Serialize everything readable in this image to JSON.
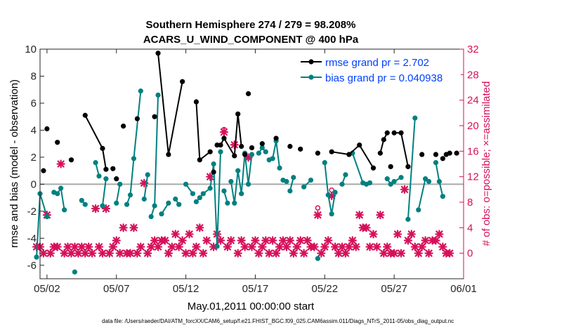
{
  "chart_data": {
    "type": "line",
    "title_line1": "Southern Hemisphere 274 / 279 = 98.208%",
    "title_line2": "ACARS_U_WIND_COMPONENT @ 400 hPa",
    "xlabel": "May.01,2011 00:00:00 start",
    "ylabel_left": "rmse and bias (model - observation)",
    "ylabel_right": "# of obs: o=possible; ×=assimilated",
    "footnote": "data file: /Users/raeder/DAI/ATM_forcXX/CAM6_setup/f.e21.FHIST_BGC.f09_025.CAM6assim.011/Diags_NTrS_2011-05/obs_diag_output.nc",
    "xlim": [
      0.5,
      31.0
    ],
    "ylim_left": [
      -7,
      10
    ],
    "ylim_right": [
      -4,
      32
    ],
    "x_ticks": [
      1,
      6,
      11,
      16,
      21,
      26,
      31
    ],
    "x_tick_labels": [
      "05/02",
      "05/07",
      "05/12",
      "05/17",
      "05/22",
      "05/27",
      "06/01"
    ],
    "y_ticks_left": [
      -6,
      -4,
      -2,
      0,
      2,
      4,
      6,
      8,
      10
    ],
    "y_tick_labels_left": [
      "-6",
      "-4",
      "-2",
      "0",
      "2",
      "4",
      "6",
      "8",
      "10"
    ],
    "y_ticks_right": [
      0,
      4,
      8,
      12,
      16,
      20,
      24,
      28,
      32
    ],
    "y_tick_labels_right": [
      "0",
      "4",
      "8",
      "12",
      "16",
      "20",
      "24",
      "28",
      "32"
    ],
    "zero_line": 0,
    "colors": {
      "rmse": "#000000",
      "bias": "#008080",
      "obs": "#d6105a",
      "legend_text": "#0040ff",
      "zero_line": "#a9a9a9",
      "right_axis": "#d6105a"
    },
    "series": [
      {
        "name": "rmse grand pr = 2.702",
        "key": "rmse",
        "points": [
          [
            0.75,
            1.0
          ],
          [
            1.0,
            4.1
          ],
          [
            1.75,
            3.1
          ],
          [
            2.75,
            1.8
          ],
          [
            3.75,
            5.1
          ],
          [
            5.0,
            2.65
          ],
          [
            5.25,
            1.1
          ],
          [
            5.75,
            1.15
          ],
          [
            6.0,
            0.4
          ],
          [
            6.5,
            4.3
          ],
          [
            7.5,
            4.85
          ],
          [
            8.75,
            5.0
          ],
          [
            9.0,
            9.7
          ],
          [
            9.75,
            2.2
          ],
          [
            10.75,
            7.6
          ],
          [
            11.75,
            6.1
          ],
          [
            12.0,
            1.8
          ],
          [
            12.75,
            2.4
          ],
          [
            13.0,
            0.9
          ],
          [
            13.25,
            2.9
          ],
          [
            13.5,
            2.9
          ],
          [
            13.75,
            3.4
          ],
          [
            14.5,
            2.1
          ],
          [
            14.75,
            5.2
          ],
          [
            15.0,
            2.8
          ],
          [
            15.25,
            2.2
          ],
          [
            15.5,
            6.7
          ],
          [
            15.75,
            2.7
          ],
          [
            16.5,
            3.0
          ],
          [
            17.5,
            3.4
          ],
          [
            18.5,
            2.8
          ],
          [
            19.25,
            2.6
          ],
          [
            20.5,
            2.3
          ],
          [
            21.5,
            2.4
          ],
          [
            22.75,
            2.2
          ],
          [
            23.5,
            2.9
          ],
          [
            24.5,
            1.2
          ],
          [
            25.0,
            2.3
          ],
          [
            25.25,
            3.3
          ],
          [
            25.5,
            3.8
          ],
          [
            25.75,
            1.3
          ],
          [
            26.0,
            3.8
          ],
          [
            26.5,
            3.8
          ],
          [
            27.0,
            1.3
          ],
          [
            28.0,
            2.2
          ],
          [
            29.0,
            2.2
          ],
          [
            29.5,
            1.9
          ],
          [
            29.75,
            2.2
          ],
          [
            30.0,
            2.3
          ],
          [
            30.5,
            2.3
          ]
        ],
        "segments": [
          [
            4,
            6
          ],
          [
            12,
            14
          ],
          [
            15,
            17
          ],
          [
            19,
            24
          ],
          [
            33,
            36
          ],
          [
            37,
            39
          ],
          [
            41,
            43
          ]
        ]
      },
      {
        "name": "bias grand pr = 0.040938",
        "key": "bias",
        "points": [
          [
            0.25,
            -5.4
          ],
          [
            0.5,
            -0.7
          ],
          [
            1.0,
            -2.4
          ],
          [
            1.5,
            -0.6
          ],
          [
            1.75,
            -0.7
          ],
          [
            2.0,
            -0.3
          ],
          [
            2.25,
            -1.9
          ],
          [
            3.0,
            -6.5
          ],
          [
            3.5,
            -1.2
          ],
          [
            3.75,
            -1.5
          ],
          [
            4.5,
            1.6
          ],
          [
            4.75,
            0.6
          ],
          [
            5.0,
            -1.6
          ],
          [
            5.25,
            0.4
          ],
          [
            6.0,
            -1.4
          ],
          [
            6.25,
            0.0
          ],
          [
            6.75,
            -1.5
          ],
          [
            7.0,
            -0.8
          ],
          [
            7.25,
            1.9
          ],
          [
            7.75,
            6.9
          ],
          [
            8.0,
            -1.1
          ],
          [
            8.25,
            0.7
          ],
          [
            8.5,
            -2.4
          ],
          [
            8.75,
            -1.6
          ],
          [
            9.0,
            6.6
          ],
          [
            9.25,
            -2.2
          ],
          [
            9.75,
            -1.4
          ],
          [
            10.25,
            -1.1
          ],
          [
            10.5,
            -1.5
          ],
          [
            11.0,
            0.0
          ],
          [
            11.5,
            -0.7
          ],
          [
            11.75,
            -1.3
          ],
          [
            12.0,
            -1.0
          ],
          [
            12.25,
            -0.7
          ],
          [
            12.75,
            -0.3
          ],
          [
            13.0,
            1.5
          ],
          [
            13.25,
            -4.6
          ],
          [
            13.5,
            2.4
          ],
          [
            13.75,
            -0.5
          ],
          [
            14.0,
            -1.4
          ],
          [
            14.25,
            0.2
          ],
          [
            14.5,
            -1.4
          ],
          [
            14.75,
            1.0
          ],
          [
            15.0,
            -0.7
          ],
          [
            15.25,
            2.3
          ],
          [
            15.5,
            0.0
          ],
          [
            15.75,
            2.2
          ],
          [
            16.25,
            2.3
          ],
          [
            16.5,
            2.7
          ],
          [
            16.75,
            2.4
          ],
          [
            17.0,
            1.8
          ],
          [
            17.25,
            1.9
          ],
          [
            17.5,
            3.2
          ],
          [
            17.75,
            1.2
          ],
          [
            18.0,
            0.3
          ],
          [
            18.25,
            0.2
          ],
          [
            18.5,
            -0.5
          ],
          [
            18.75,
            0.5
          ],
          [
            19.5,
            -0.2
          ],
          [
            20.0,
            0.3
          ],
          [
            20.5,
            -5.5
          ],
          [
            21.0,
            1.6
          ],
          [
            21.25,
            -0.8
          ],
          [
            21.5,
            -2.2
          ],
          [
            21.75,
            -0.6
          ],
          [
            22.25,
            0.0
          ],
          [
            22.5,
            0.7
          ],
          [
            23.0,
            2.3
          ],
          [
            23.75,
            0.1
          ],
          [
            24.0,
            0.0
          ],
          [
            24.25,
            0.1
          ],
          [
            25.5,
            0.4
          ],
          [
            25.75,
            0.0
          ],
          [
            26.0,
            0.2
          ],
          [
            26.5,
            0.5
          ],
          [
            27.0,
            -2.6
          ],
          [
            27.5,
            4.9
          ],
          [
            27.75,
            -1.9
          ],
          [
            28.25,
            0.4
          ],
          [
            28.5,
            0.2
          ],
          [
            29.0,
            1.6
          ],
          [
            29.25,
            0.2
          ],
          [
            29.5,
            -0.9
          ]
        ],
        "segments": [
          [
            0,
            2
          ],
          [
            3,
            6
          ],
          [
            8,
            9
          ],
          [
            10,
            11
          ],
          [
            12,
            13
          ],
          [
            14,
            15
          ],
          [
            16,
            19
          ],
          [
            20,
            21
          ],
          [
            22,
            24
          ],
          [
            25,
            26
          ],
          [
            27,
            28
          ],
          [
            29,
            30
          ],
          [
            31,
            37
          ],
          [
            38,
            39
          ],
          [
            40,
            46
          ],
          [
            47,
            49
          ],
          [
            50,
            53
          ],
          [
            54,
            55
          ],
          [
            56,
            57
          ],
          [
            58,
            59
          ],
          [
            61,
            64
          ],
          [
            65,
            66
          ],
          [
            67,
            70
          ],
          [
            71,
            74
          ],
          [
            75,
            76
          ],
          [
            77,
            79
          ],
          [
            80,
            82
          ]
        ]
      },
      {
        "name": "obs possible",
        "key": "obs_possible",
        "points": [
          [
            13.75,
            19.4
          ],
          [
            20.5,
            7.1
          ],
          [
            21.5,
            9.9
          ]
        ]
      },
      {
        "name": "obs assimilated",
        "key": "obs_assimilated",
        "points": [
          [
            0.25,
            1
          ],
          [
            0.5,
            1
          ],
          [
            0.75,
            0
          ],
          [
            1.0,
            6
          ],
          [
            1.25,
            0
          ],
          [
            1.5,
            1
          ],
          [
            1.75,
            1
          ],
          [
            2.0,
            14
          ],
          [
            2.25,
            0
          ],
          [
            2.5,
            1
          ],
          [
            2.75,
            0
          ],
          [
            3.0,
            1
          ],
          [
            3.25,
            0
          ],
          [
            3.5,
            1
          ],
          [
            3.75,
            0
          ],
          [
            4.0,
            1
          ],
          [
            4.25,
            0
          ],
          [
            4.5,
            7
          ],
          [
            4.75,
            1
          ],
          [
            5.0,
            0
          ],
          [
            5.25,
            7
          ],
          [
            5.5,
            0
          ],
          [
            5.75,
            1
          ],
          [
            6.0,
            2
          ],
          [
            6.25,
            0
          ],
          [
            6.5,
            4
          ],
          [
            6.75,
            0
          ],
          [
            7.0,
            0
          ],
          [
            7.25,
            4
          ],
          [
            7.5,
            0
          ],
          [
            7.75,
            1
          ],
          [
            8.0,
            11
          ],
          [
            8.25,
            0
          ],
          [
            8.5,
            1
          ],
          [
            8.75,
            2
          ],
          [
            9.0,
            1
          ],
          [
            9.25,
            2
          ],
          [
            9.5,
            2
          ],
          [
            9.75,
            0
          ],
          [
            10.0,
            1
          ],
          [
            10.25,
            3
          ],
          [
            10.5,
            1
          ],
          [
            10.75,
            2
          ],
          [
            11.0,
            0
          ],
          [
            11.25,
            3
          ],
          [
            11.5,
            0
          ],
          [
            11.75,
            1
          ],
          [
            12.0,
            4
          ],
          [
            12.25,
            0
          ],
          [
            12.5,
            2
          ],
          [
            12.75,
            12
          ],
          [
            13.0,
            1
          ],
          [
            13.25,
            3
          ],
          [
            13.5,
            2
          ],
          [
            13.75,
            19
          ],
          [
            14.0,
            1
          ],
          [
            14.25,
            2
          ],
          [
            14.5,
            17
          ],
          [
            14.75,
            0
          ],
          [
            15.0,
            2
          ],
          [
            15.25,
            1
          ],
          [
            15.5,
            15
          ],
          [
            15.75,
            1
          ],
          [
            16.0,
            2
          ],
          [
            16.25,
            0
          ],
          [
            16.5,
            1
          ],
          [
            16.75,
            2
          ],
          [
            17.0,
            0
          ],
          [
            17.25,
            2
          ],
          [
            17.5,
            0
          ],
          [
            17.75,
            1
          ],
          [
            18.0,
            2
          ],
          [
            18.25,
            1
          ],
          [
            18.5,
            2
          ],
          [
            18.75,
            0
          ],
          [
            19.0,
            1
          ],
          [
            19.25,
            2
          ],
          [
            19.5,
            0
          ],
          [
            19.75,
            2
          ],
          [
            20.0,
            1
          ],
          [
            20.25,
            1
          ],
          [
            20.5,
            6
          ],
          [
            20.75,
            0
          ],
          [
            21.0,
            1
          ],
          [
            21.25,
            2
          ],
          [
            21.5,
            9
          ],
          [
            21.75,
            1
          ],
          [
            22.0,
            0
          ],
          [
            22.25,
            1
          ],
          [
            22.5,
            0
          ],
          [
            22.75,
            1
          ],
          [
            23.0,
            2
          ],
          [
            23.25,
            1
          ],
          [
            23.5,
            6
          ],
          [
            23.75,
            4
          ],
          [
            24.0,
            4
          ],
          [
            24.25,
            1
          ],
          [
            24.5,
            3
          ],
          [
            24.75,
            1
          ],
          [
            25.0,
            6
          ],
          [
            25.25,
            0
          ],
          [
            25.5,
            1
          ],
          [
            25.75,
            0
          ],
          [
            26.0,
            0
          ],
          [
            26.25,
            3
          ],
          [
            26.5,
            0
          ],
          [
            26.75,
            10
          ],
          [
            27.0,
            2
          ],
          [
            27.25,
            3
          ],
          [
            27.5,
            1
          ],
          [
            27.75,
            0
          ],
          [
            28.0,
            1
          ],
          [
            28.25,
            2
          ],
          [
            28.5,
            0
          ],
          [
            28.75,
            2
          ],
          [
            29.0,
            2
          ],
          [
            29.25,
            3
          ],
          [
            29.5,
            1
          ],
          [
            29.75,
            0
          ],
          [
            30.0,
            0
          ]
        ]
      }
    ]
  }
}
